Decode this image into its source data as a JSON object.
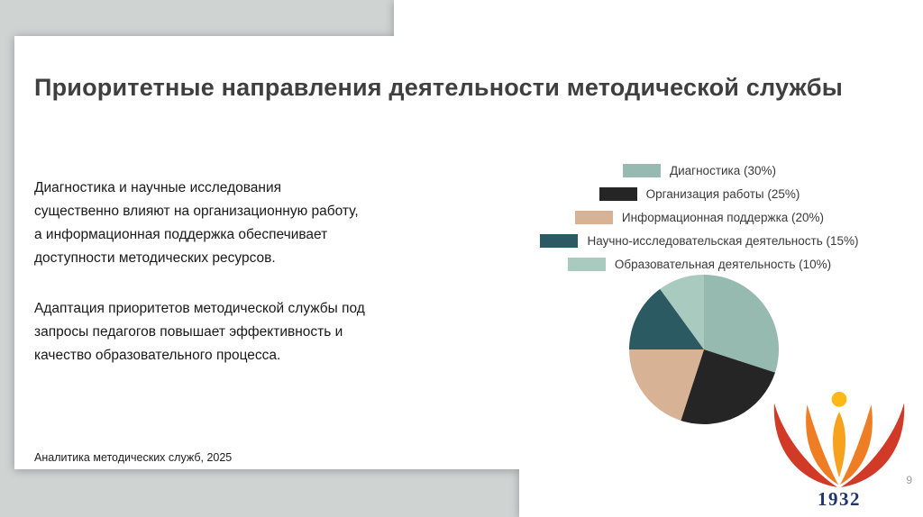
{
  "slide": {
    "title": "Приоритетные направления деятельности методической службы",
    "body": {
      "paragraph1": "Диагностика и научные исследования\nсущественно влияют на организационную работу,\nа информационная поддержка обеспечивает\nдоступности методических ресурсов.",
      "paragraph2": "Адаптация приоритетов методической службы под\nзапросы педагогов повышает эффективность и\nкачество образовательного процесса."
    },
    "footer": "Аналитика методических служб, 2025",
    "page_number": "9"
  },
  "logo": {
    "icon": "lotus-person-icon",
    "year": "1932"
  },
  "colors": {
    "background": "#cfd3d2",
    "slide": "#ffffff",
    "title_text": "#3f3f3f",
    "body_text": "#191919",
    "logo_year": "#20356b",
    "logo_outer_petal": "#d23a28",
    "logo_inner_petal": "#ef7d23",
    "logo_figure": "#f6a21c",
    "logo_head": "#fdb813"
  },
  "chart_data": {
    "type": "pie",
    "title": "",
    "legend_position": "top",
    "segments": [
      {
        "label": "Диагностика (30%)",
        "value": 30,
        "color": "#96bab0"
      },
      {
        "label": "Организация работы (25%)",
        "value": 25,
        "color": "#252525"
      },
      {
        "label": "Информационная поддержка (20%)",
        "value": 20,
        "color": "#d8b294"
      },
      {
        "label": "Научно-исследовательская деятельность (15%)",
        "value": 15,
        "color": "#2c5a62"
      },
      {
        "label": "Образовательная деятельность (10%)",
        "value": 10,
        "color": "#a9cabf"
      }
    ]
  }
}
